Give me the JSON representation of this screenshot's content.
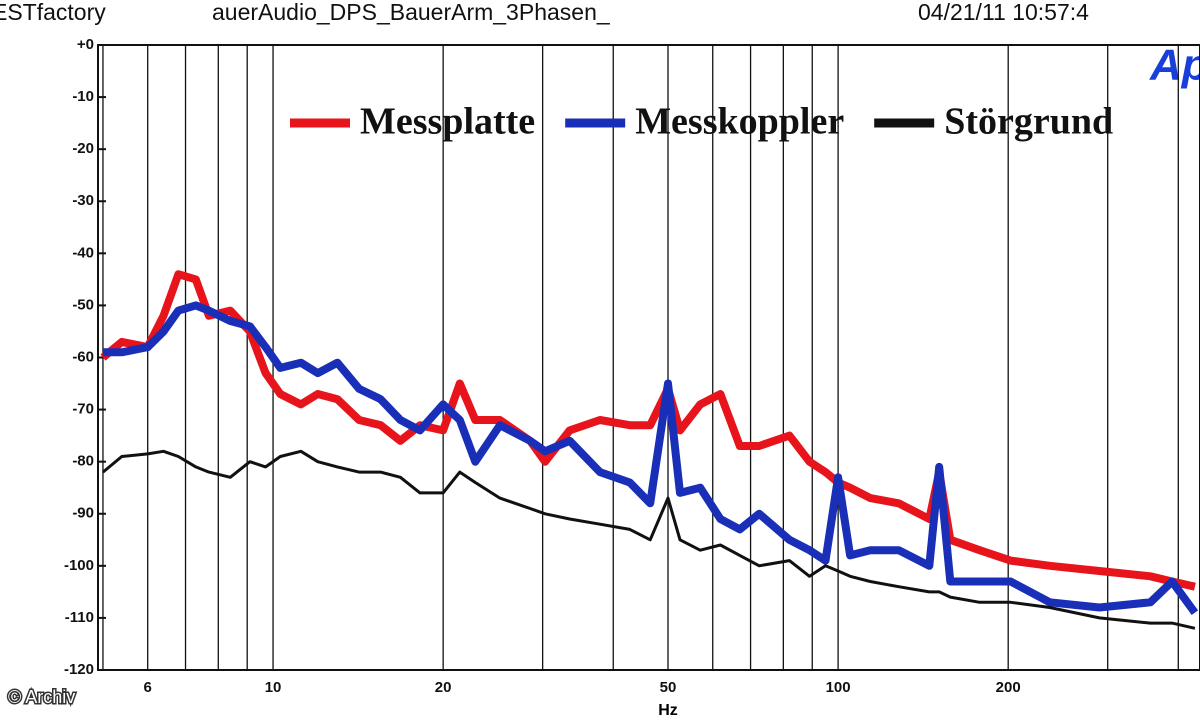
{
  "chart_data": {
    "type": "line",
    "header": [
      "ESTfactory",
      "auerAudio_DPS_BauerArm_3Phasen_",
      "04/21/11 10:57:4"
    ],
    "logo": "Ap",
    "xlabel": "Hz",
    "watermark": "© Archiv",
    "xscale": "log",
    "xlim": [
      4.9,
      437
    ],
    "xticks": [
      6,
      10,
      20,
      50,
      100,
      200
    ],
    "xgrid": [
      5,
      6,
      7,
      8,
      9,
      10,
      20,
      30,
      40,
      50,
      60,
      70,
      80,
      90,
      100,
      200,
      300,
      400
    ],
    "ylim": [
      -120,
      0
    ],
    "yticks": [
      {
        "value": 0,
        "label": "+0"
      },
      -10,
      -20,
      -30,
      -40,
      -50,
      -60,
      -70,
      -80,
      -90,
      -100,
      -110,
      -120
    ],
    "legend": "top",
    "x": [
      5,
      5.4,
      6,
      6.4,
      6.8,
      7.3,
      7.7,
      8.4,
      9.1,
      9.7,
      10.3,
      11.2,
      12,
      13,
      14.2,
      15.5,
      16.8,
      18.2,
      20,
      21.4,
      22.8,
      25.2,
      28.5,
      30.3,
      33.5,
      37.9,
      42.8,
      46.5,
      50,
      52.5,
      57,
      61.9,
      67,
      72.5,
      82,
      89,
      95,
      100,
      105,
      114,
      128,
      145,
      151,
      158,
      178,
      202,
      237,
      290,
      357,
      390,
      428
    ],
    "series": [
      {
        "name": "Messplatte",
        "color": "#e8141c",
        "width": 8,
        "values": [
          -60,
          -57,
          -58,
          -52,
          -44,
          -45,
          -52,
          -51,
          -55,
          -63,
          -67,
          -69,
          -67,
          -68,
          -72,
          -73,
          -76,
          -73,
          -74,
          -65,
          -72,
          -72,
          -76,
          -80,
          -74,
          -72,
          -73,
          -73,
          -66,
          -74,
          -69,
          -67,
          -77,
          -77,
          -75,
          -80,
          -82,
          -84,
          -85,
          -87,
          -88,
          -91,
          -82,
          -95,
          -97,
          -99,
          -100,
          -101,
          -102,
          -103,
          -104
        ]
      },
      {
        "name": "Messkoppler",
        "color": "#1a2fb8",
        "width": 8,
        "values": [
          -59,
          -59,
          -58,
          -55,
          -51,
          -50,
          -51,
          -53,
          -54,
          -58,
          -62,
          -61,
          -63,
          -61,
          -66,
          -68,
          -72,
          -74,
          -69,
          -72,
          -80,
          -73,
          -76,
          -78,
          -76,
          -82,
          -84,
          -88,
          -65,
          -86,
          -85,
          -91,
          -93,
          -90,
          -95,
          -97,
          -99,
          -83,
          -98,
          -97,
          -97,
          -100,
          -81,
          -103,
          -103,
          -103,
          -107,
          -108,
          -107,
          -103,
          -109
        ]
      },
      {
        "name": "Störgrund",
        "color": "#111111",
        "width": 3,
        "values": [
          -82,
          -79,
          -78.5,
          -78,
          -79,
          -81,
          -82,
          -83,
          -80,
          -81,
          -79,
          -78,
          -80,
          -81,
          -82,
          -82,
          -83,
          -86,
          -86,
          -82,
          -84,
          -87,
          -89,
          -90,
          -91,
          -92,
          -93,
          -95,
          -87,
          -95,
          -97,
          -96,
          -98,
          -100,
          -99,
          -102,
          -100,
          -101,
          -102,
          -103,
          -104,
          -105,
          -105,
          -106,
          -107,
          -107,
          -108,
          -110,
          -111,
          -111,
          -112
        ]
      }
    ]
  }
}
